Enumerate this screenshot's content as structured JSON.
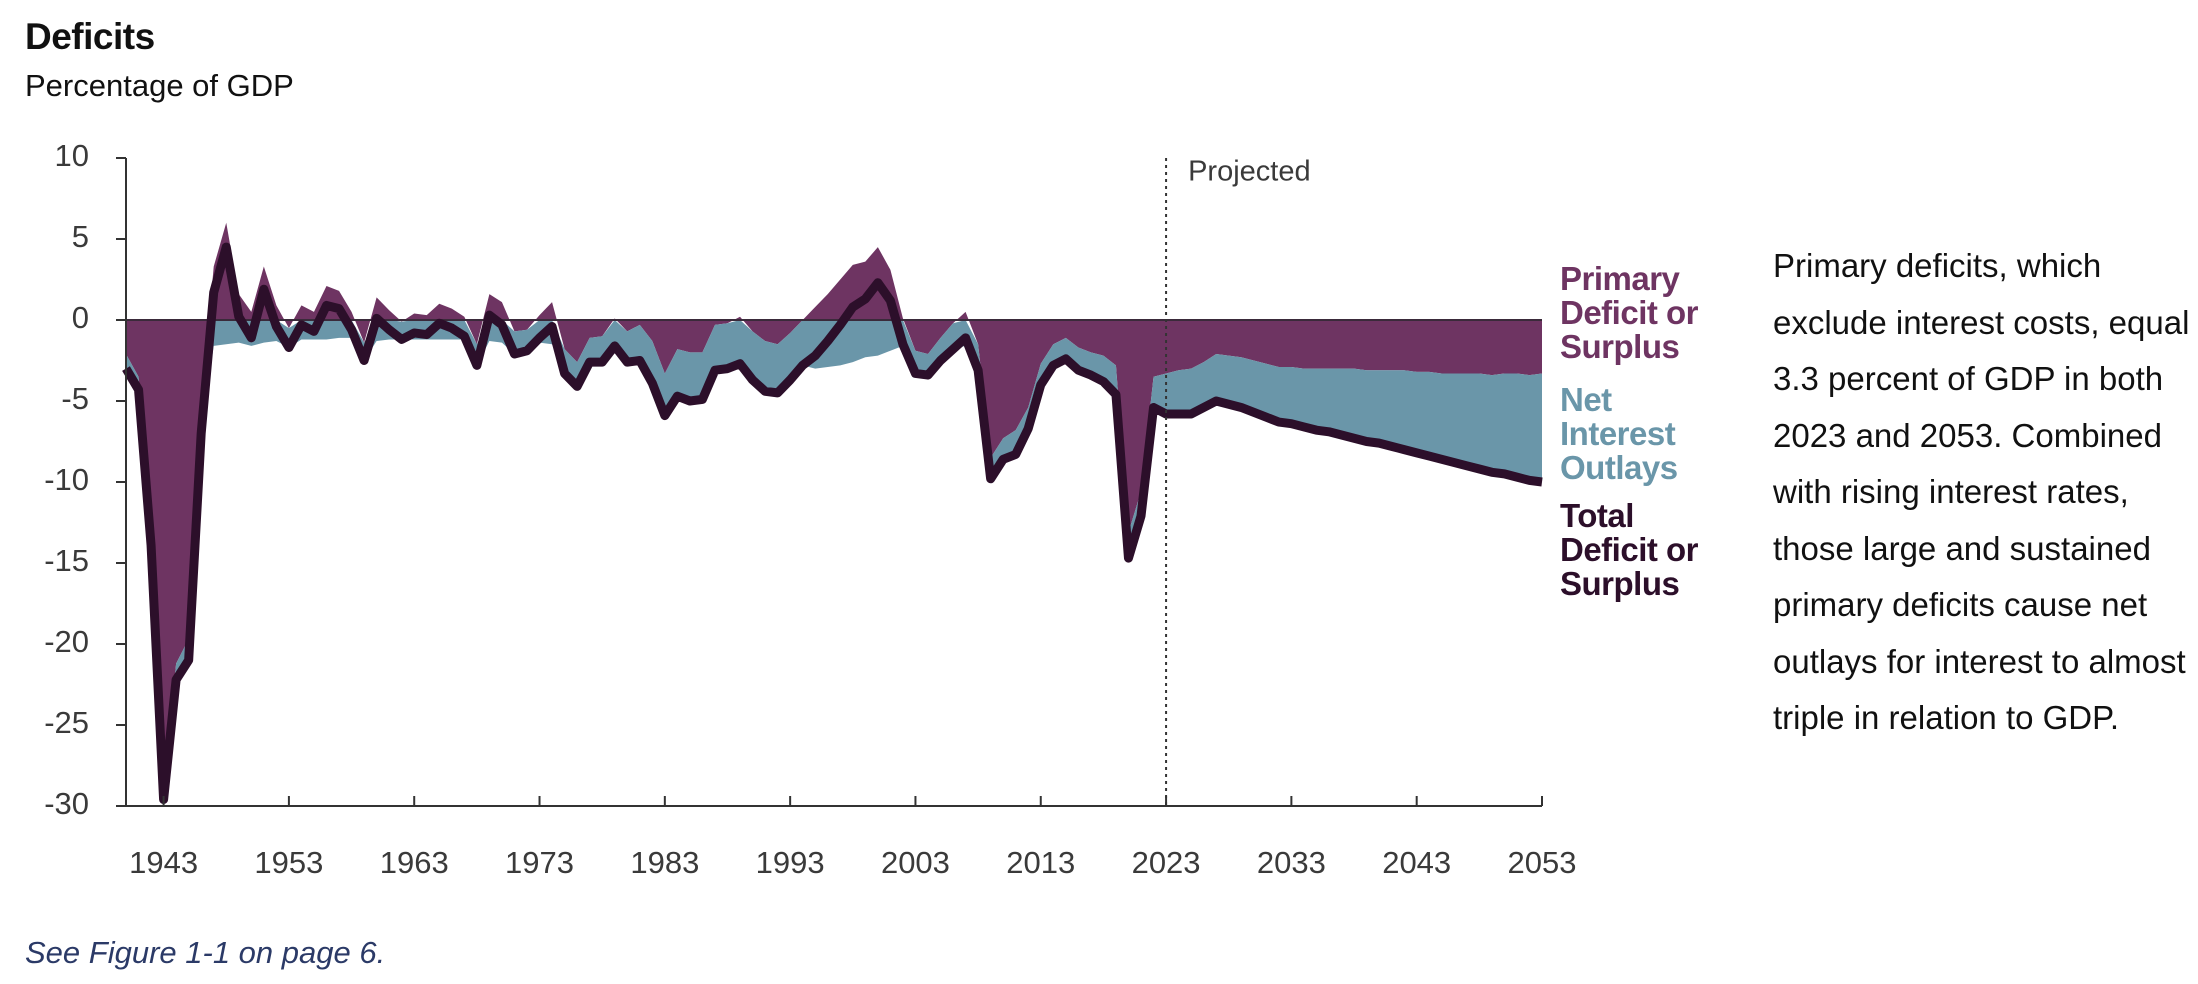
{
  "chart_data": {
    "type": "area-line",
    "title": "Deficits",
    "subtitle": "Percentage of GDP",
    "projection_label": "Projected",
    "projection_start": 2023,
    "annotation": "Primary deficits, which exclude interest costs, equal 3.3 percent of GDP in both 2023 and 2053. Combined with rising interest rates, those large and sustained primary deficits cause net outlays for interest to almost triple in relation to GDP.",
    "note": "See Figure 1-1 on page 6.",
    "xlim": [
      1940,
      2053
    ],
    "xticks": [
      1943,
      1953,
      1963,
      1973,
      1983,
      1993,
      2003,
      2013,
      2023,
      2033,
      2043,
      2053
    ],
    "ylim": [
      -30,
      10
    ],
    "yticks": [
      10,
      5,
      0,
      -5,
      -10,
      -15,
      -20,
      -25,
      -30
    ],
    "x": [
      1940,
      1941,
      1942,
      1943,
      1944,
      1945,
      1946,
      1947,
      1948,
      1949,
      1950,
      1951,
      1952,
      1953,
      1954,
      1955,
      1956,
      1957,
      1958,
      1959,
      1960,
      1961,
      1962,
      1963,
      1964,
      1965,
      1966,
      1967,
      1968,
      1969,
      1970,
      1971,
      1972,
      1973,
      1974,
      1975,
      1976,
      1977,
      1978,
      1979,
      1980,
      1981,
      1982,
      1983,
      1984,
      1985,
      1986,
      1987,
      1988,
      1989,
      1990,
      1991,
      1992,
      1993,
      1994,
      1995,
      1996,
      1997,
      1998,
      1999,
      2000,
      2001,
      2002,
      2003,
      2004,
      2005,
      2006,
      2007,
      2008,
      2009,
      2010,
      2011,
      2012,
      2013,
      2014,
      2015,
      2016,
      2017,
      2018,
      2019,
      2020,
      2021,
      2022,
      2023,
      2024,
      2025,
      2026,
      2027,
      2028,
      2029,
      2030,
      2031,
      2032,
      2033,
      2034,
      2035,
      2036,
      2037,
      2038,
      2039,
      2040,
      2041,
      2042,
      2043,
      2044,
      2045,
      2046,
      2047,
      2048,
      2049,
      2050,
      2051,
      2052,
      2053
    ],
    "series": [
      {
        "name": "Primary Deficit or Surplus",
        "color": "#6e3462",
        "kind": "area",
        "values": [
          -2.1,
          -3.5,
          -13.2,
          -28.8,
          -21.2,
          -19.7,
          -5.4,
          3.3,
          6.0,
          1.6,
          0.5,
          3.3,
          0.9,
          -0.5,
          0.9,
          0.5,
          2.1,
          1.8,
          0.5,
          -1.4,
          1.4,
          0.6,
          -0.1,
          0.4,
          0.3,
          1.0,
          0.7,
          0.2,
          -1.5,
          1.6,
          1.1,
          -0.7,
          -0.6,
          0.3,
          1.1,
          -1.8,
          -2.6,
          -1.1,
          -1.0,
          0.1,
          -0.7,
          -0.3,
          -1.3,
          -3.3,
          -1.8,
          -2.0,
          -2.0,
          -0.3,
          -0.2,
          0.2,
          -0.7,
          -1.3,
          -1.5,
          -0.8,
          0.0,
          0.8,
          1.6,
          2.5,
          3.4,
          3.6,
          4.5,
          3.1,
          0.1,
          -1.9,
          -2.1,
          -1.1,
          -0.2,
          0.5,
          -1.5,
          -8.5,
          -7.3,
          -6.8,
          -5.4,
          -2.7,
          -1.5,
          -1.1,
          -1.7,
          -2.0,
          -2.2,
          -2.8,
          -13.1,
          -10.6,
          -3.5,
          -3.3,
          -3.1,
          -3.0,
          -2.6,
          -2.1,
          -2.2,
          -2.3,
          -2.5,
          -2.7,
          -2.9,
          -2.9,
          -3.0,
          -3.0,
          -3.0,
          -3.0,
          -3.0,
          -3.1,
          -3.1,
          -3.1,
          -3.1,
          -3.2,
          -3.2,
          -3.3,
          -3.3,
          -3.3,
          -3.3,
          -3.4,
          -3.3,
          -3.3,
          -3.4,
          -3.3
        ]
      },
      {
        "name": "Net Interest Outlays",
        "color": "#6a96a9",
        "kind": "area",
        "values": [
          -0.9,
          -0.8,
          -0.7,
          -0.8,
          -1.0,
          -1.3,
          -1.6,
          -1.6,
          -1.5,
          -1.4,
          -1.6,
          -1.4,
          -1.3,
          -1.2,
          -1.2,
          -1.2,
          -1.2,
          -1.1,
          -1.1,
          -1.1,
          -1.3,
          -1.2,
          -1.1,
          -1.2,
          -1.2,
          -1.2,
          -1.2,
          -1.2,
          -1.3,
          -1.3,
          -1.4,
          -1.4,
          -1.3,
          -1.4,
          -1.5,
          -1.5,
          -1.5,
          -1.5,
          -1.6,
          -1.7,
          -1.9,
          -2.2,
          -2.6,
          -2.6,
          -2.9,
          -3.0,
          -2.9,
          -2.8,
          -2.8,
          -2.9,
          -3.0,
          -3.1,
          -3.0,
          -2.9,
          -2.8,
          -3.0,
          -2.9,
          -2.8,
          -2.6,
          -2.3,
          -2.2,
          -1.9,
          -1.6,
          -1.4,
          -1.3,
          -1.4,
          -1.6,
          -1.6,
          -1.6,
          -1.3,
          -1.3,
          -1.5,
          -1.3,
          -1.3,
          -1.3,
          -1.3,
          -1.4,
          -1.4,
          -1.6,
          -1.8,
          -1.6,
          -1.5,
          -1.9,
          -2.5,
          -2.7,
          -2.8,
          -2.8,
          -2.9,
          -3.0,
          -3.1,
          -3.2,
          -3.3,
          -3.4,
          -3.5,
          -3.6,
          -3.8,
          -3.9,
          -4.1,
          -4.3,
          -4.4,
          -4.5,
          -4.7,
          -4.9,
          -5.0,
          -5.2,
          -5.3,
          -5.5,
          -5.7,
          -5.9,
          -6.0,
          -6.2,
          -6.4,
          -6.5,
          -6.7
        ]
      },
      {
        "name": "Total Deficit or Surplus",
        "color": "#2c0f2a",
        "kind": "line",
        "values": [
          -3.0,
          -4.3,
          -13.9,
          -29.6,
          -22.2,
          -21.0,
          -7.0,
          1.7,
          4.5,
          0.2,
          -1.1,
          1.9,
          -0.4,
          -1.7,
          -0.3,
          -0.7,
          0.9,
          0.7,
          -0.6,
          -2.5,
          0.1,
          -0.6,
          -1.2,
          -0.8,
          -0.9,
          -0.2,
          -0.5,
          -1.0,
          -2.8,
          0.3,
          -0.3,
          -2.1,
          -1.9,
          -1.1,
          -0.4,
          -3.3,
          -4.1,
          -2.6,
          -2.6,
          -1.6,
          -2.6,
          -2.5,
          -3.9,
          -5.9,
          -4.7,
          -5.0,
          -4.9,
          -3.1,
          -3.0,
          -2.7,
          -3.7,
          -4.4,
          -4.5,
          -3.7,
          -2.8,
          -2.2,
          -1.3,
          -0.3,
          0.8,
          1.3,
          2.3,
          1.2,
          -1.5,
          -3.3,
          -3.4,
          -2.5,
          -1.8,
          -1.1,
          -3.1,
          -9.8,
          -8.6,
          -8.3,
          -6.7,
          -4.0,
          -2.8,
          -2.4,
          -3.1,
          -3.4,
          -3.8,
          -4.6,
          -14.7,
          -12.1,
          -5.4,
          -5.8,
          -5.8,
          -5.8,
          -5.4,
          -5.0,
          -5.2,
          -5.4,
          -5.7,
          -6.0,
          -6.3,
          -6.4,
          -6.6,
          -6.8,
          -6.9,
          -7.1,
          -7.3,
          -7.5,
          -7.6,
          -7.8,
          -8.0,
          -8.2,
          -8.4,
          -8.6,
          -8.8,
          -9.0,
          -9.2,
          -9.4,
          -9.5,
          -9.7,
          -9.9,
          -10.0
        ]
      }
    ]
  }
}
